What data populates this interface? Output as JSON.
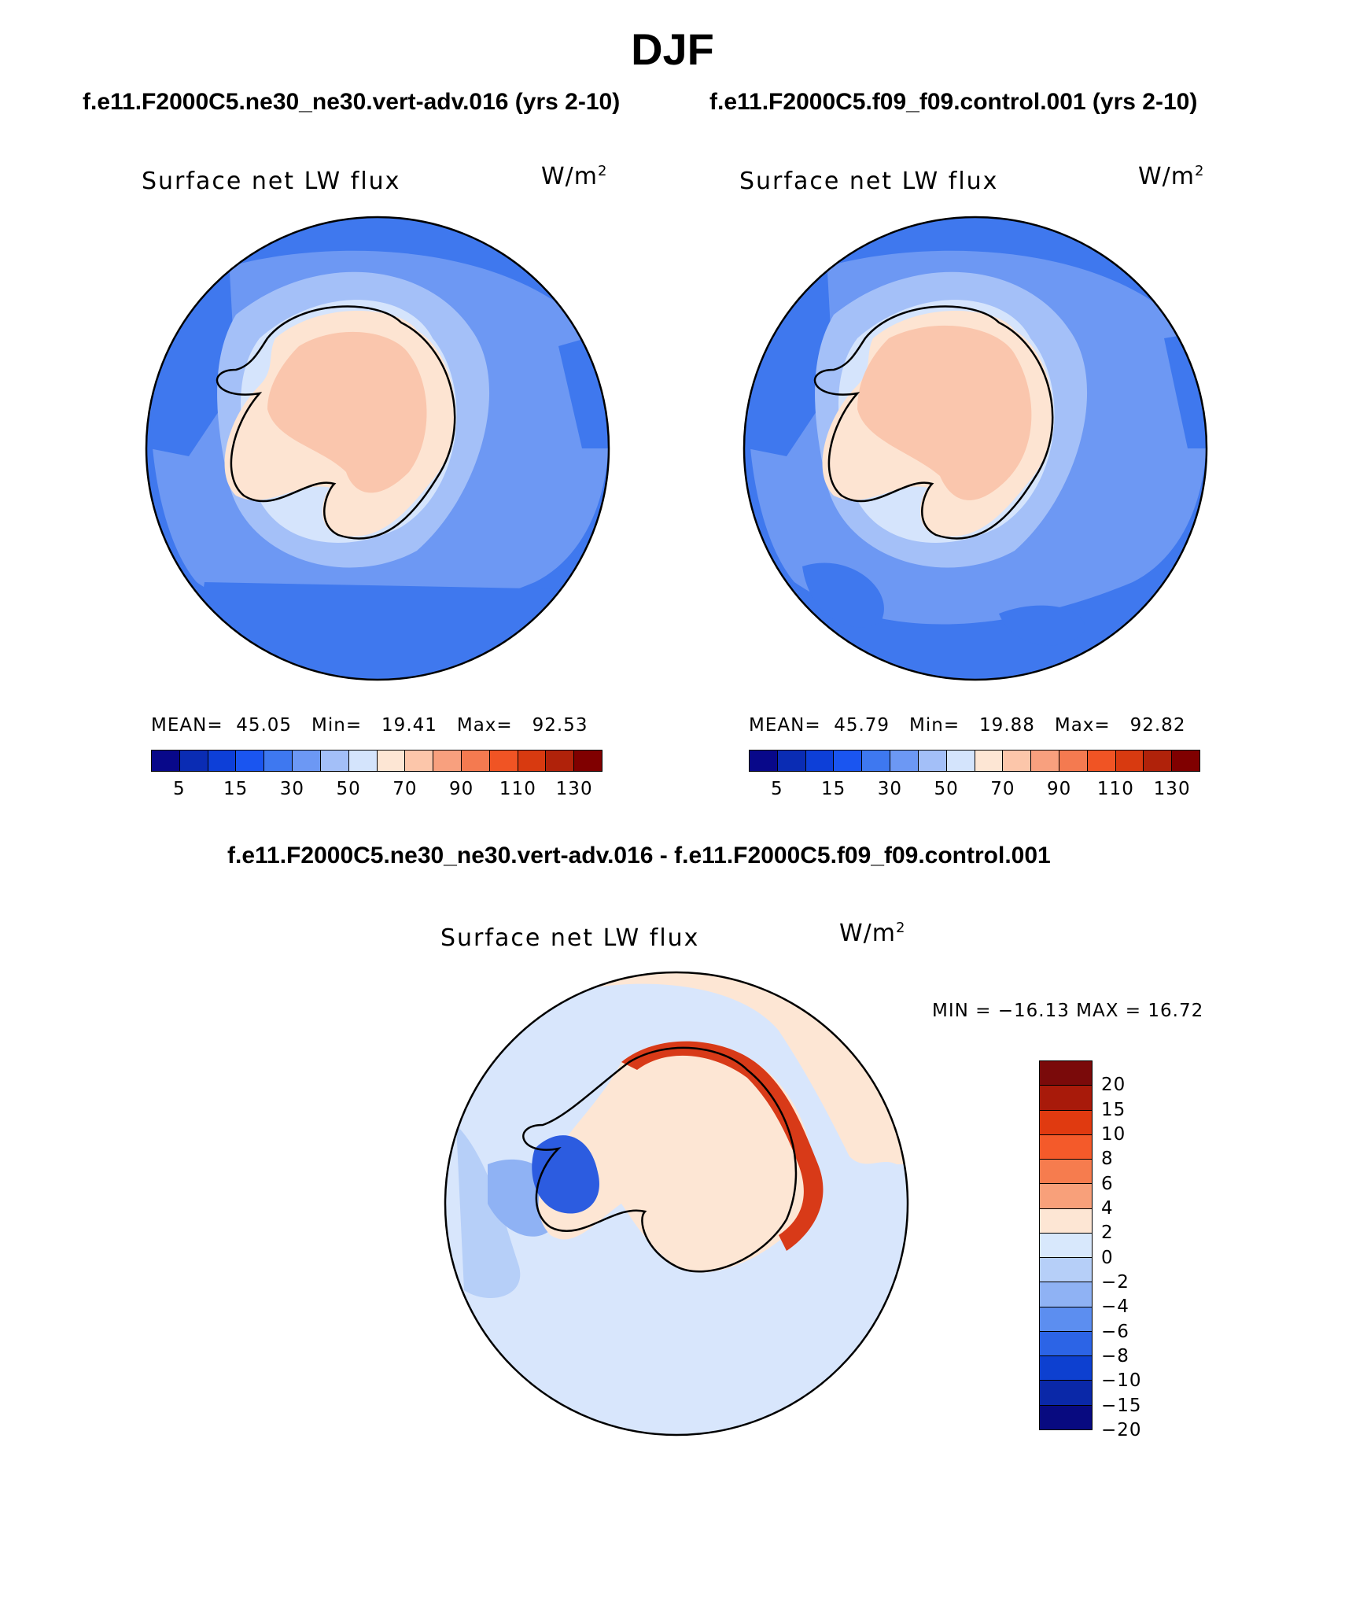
{
  "title": "DJF",
  "panels": {
    "left": {
      "case": "f.e11.F2000C5.ne30_ne30.vert-adv.016 (yrs 2-10)",
      "variable": "Surface net LW flux",
      "unit": "W/m",
      "unit_exp": "2",
      "stats": {
        "mean_label": "MEAN=",
        "mean": "45.05",
        "min_label": "Min=",
        "min": "19.41",
        "max_label": "Max=",
        "max": "92.53"
      }
    },
    "right": {
      "case": "f.e11.F2000C5.f09_f09.control.001 (yrs 2-10)",
      "variable": "Surface net LW flux",
      "unit": "W/m",
      "unit_exp": "2",
      "stats": {
        "mean_label": "MEAN=",
        "mean": "45.79",
        "min_label": "Min=",
        "min": "19.88",
        "max_label": "Max=",
        "max": "92.82"
      }
    },
    "diff": {
      "case": "f.e11.F2000C5.ne30_ne30.vert-adv.016 - f.e11.F2000C5.f09_f09.control.001",
      "variable": "Surface net LW flux",
      "unit": "W/m",
      "unit_exp": "2",
      "minmax": "MIN = −16.13 MAX =   16.72"
    }
  },
  "colorbar_main": {
    "colors": [
      "#08088a",
      "#0a2cb4",
      "#0d3fd8",
      "#1a55f0",
      "#3e78f0",
      "#6c98f4",
      "#a3bff8",
      "#d4e4fc",
      "#fde6d4",
      "#fcc6aa",
      "#f8a07e",
      "#f47a50",
      "#f05424",
      "#d83a10",
      "#b0220a",
      "#800000"
    ],
    "ticks": [
      "5",
      "15",
      "30",
      "50",
      "70",
      "90",
      "110",
      "130"
    ]
  },
  "colorbar_diff": {
    "colors": [
      "#7a0a0a",
      "#a81a0a",
      "#e03a10",
      "#f45a2a",
      "#f67c4e",
      "#f8a07a",
      "#fde6d4",
      "#d8e8fc",
      "#b6cff8",
      "#8fb2f4",
      "#5c8ef0",
      "#2c64e6",
      "#0d40d0",
      "#0a28a8",
      "#080a80"
    ],
    "ticks": [
      "20",
      "15",
      "10",
      "8",
      "6",
      "4",
      "2",
      "0",
      "−2",
      "−4",
      "−6",
      "−8",
      "−10",
      "−15",
      "−20"
    ]
  },
  "map_colors": {
    "ocean_far": "#3f78ee",
    "ocean_mid": "#6d98f3",
    "ocean_near": "#a4c0f8",
    "coast_band": "#d5e4fc",
    "land_low": "#fde4d2",
    "land_high": "#fac6ad",
    "diff_bg": "#d8e6fc",
    "diff_pos": "#f8b090",
    "diff_strong": "#d83a18",
    "diff_neg": "#8fb2f4",
    "diff_strong_neg": "#2c5ce0"
  }
}
